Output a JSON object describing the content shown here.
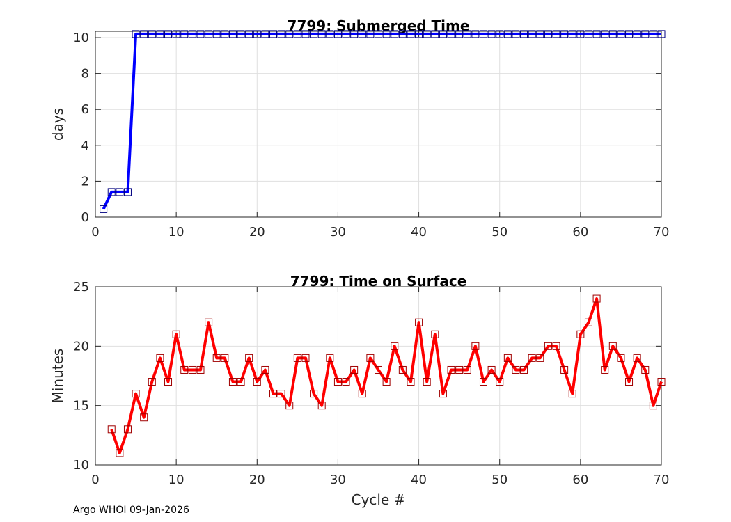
{
  "footer": "Argo WHOI 09-Jan-2026",
  "chart_data": [
    {
      "type": "line",
      "title": "7799: Submerged Time",
      "xlabel": "",
      "ylabel": "days",
      "xlim": [
        0,
        70
      ],
      "ylim": [
        0,
        10.35
      ],
      "xticks": [
        0,
        10,
        20,
        30,
        40,
        50,
        60,
        70
      ],
      "yticks": [
        0,
        2,
        4,
        6,
        8,
        10
      ],
      "grid": true,
      "color": "#0000ff",
      "marker": "square",
      "series": [
        {
          "name": "Submerged Time",
          "x": [
            1,
            2,
            3,
            4,
            5,
            6,
            7,
            8,
            9,
            10,
            11,
            12,
            13,
            14,
            15,
            16,
            17,
            18,
            19,
            20,
            21,
            22,
            23,
            24,
            25,
            26,
            27,
            28,
            29,
            30,
            31,
            32,
            33,
            34,
            35,
            36,
            37,
            38,
            39,
            40,
            41,
            42,
            43,
            44,
            45,
            46,
            47,
            48,
            49,
            50,
            51,
            52,
            53,
            54,
            55,
            56,
            57,
            58,
            59,
            60,
            61,
            62,
            63,
            64,
            65,
            66,
            67,
            68,
            69,
            70
          ],
          "values": [
            0.45,
            1.4,
            1.4,
            1.4,
            10.2,
            10.2,
            10.2,
            10.2,
            10.2,
            10.2,
            10.2,
            10.2,
            10.2,
            10.2,
            10.2,
            10.2,
            10.2,
            10.2,
            10.2,
            10.2,
            10.2,
            10.2,
            10.2,
            10.2,
            10.2,
            10.2,
            10.2,
            10.2,
            10.2,
            10.2,
            10.2,
            10.2,
            10.2,
            10.2,
            10.2,
            10.2,
            10.2,
            10.2,
            10.2,
            10.2,
            10.2,
            10.2,
            10.2,
            10.2,
            10.2,
            10.2,
            10.2,
            10.2,
            10.2,
            10.2,
            10.2,
            10.2,
            10.2,
            10.2,
            10.2,
            10.2,
            10.2,
            10.2,
            10.2,
            10.2,
            10.2,
            10.2,
            10.2,
            10.2,
            10.2,
            10.2,
            10.2,
            10.2,
            10.2,
            10.2
          ]
        }
      ]
    },
    {
      "type": "line",
      "title": "7799: Time on Surface",
      "xlabel": "Cycle #",
      "ylabel": "Minutes",
      "xlim": [
        0,
        70
      ],
      "ylim": [
        10,
        25
      ],
      "xticks": [
        0,
        10,
        20,
        30,
        40,
        50,
        60,
        70
      ],
      "yticks": [
        10,
        15,
        20,
        25
      ],
      "grid": true,
      "color": "#ff0000",
      "marker": "square",
      "series": [
        {
          "name": "Time on Surface",
          "x": [
            2,
            3,
            4,
            5,
            6,
            7,
            8,
            9,
            10,
            11,
            12,
            13,
            14,
            15,
            16,
            17,
            18,
            19,
            20,
            21,
            22,
            23,
            24,
            25,
            26,
            27,
            28,
            29,
            30,
            31,
            32,
            33,
            34,
            35,
            36,
            37,
            38,
            39,
            40,
            41,
            42,
            43,
            44,
            45,
            46,
            47,
            48,
            49,
            50,
            51,
            52,
            53,
            54,
            55,
            56,
            57,
            58,
            59,
            60,
            61,
            62,
            63,
            64,
            65,
            66,
            67,
            68,
            69,
            70
          ],
          "values": [
            13,
            11,
            13,
            16,
            14,
            17,
            19,
            17,
            21,
            18,
            18,
            18,
            22,
            19,
            19,
            17,
            17,
            19,
            17,
            18,
            16,
            16,
            15,
            19,
            19,
            16,
            15,
            19,
            17,
            17,
            18,
            16,
            19,
            18,
            17,
            20,
            18,
            17,
            22,
            17,
            21,
            16,
            18,
            18,
            18,
            20,
            17,
            18,
            17,
            19,
            18,
            18,
            19,
            19,
            20,
            20,
            18,
            16,
            21,
            22,
            24,
            18,
            20,
            19,
            17,
            19,
            18,
            15,
            17
          ]
        }
      ]
    }
  ]
}
